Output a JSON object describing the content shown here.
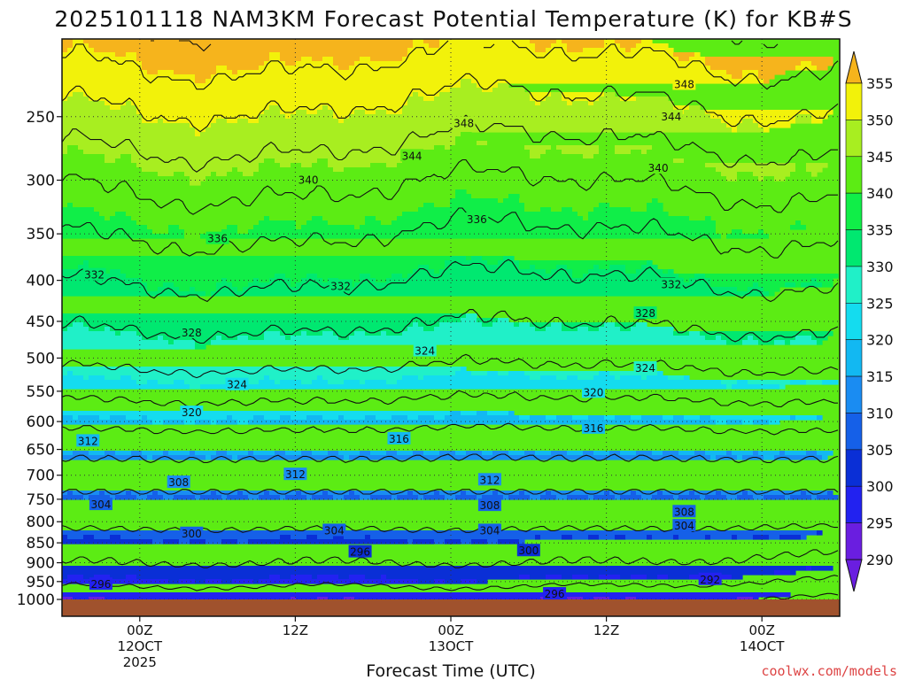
{
  "title": "2025101118 NAM3KM Forecast Potential Temperature (K) for KB#S",
  "credit": "coolwx.com/models",
  "colors": {
    "ground": "#a0522d",
    "bands": {
      "290": "#6a1ee0",
      "295": "#2222f0",
      "300": "#0a2fd6",
      "305": "#1560e8",
      "310": "#1a8cf2",
      "315": "#12b8f2",
      "320": "#14dcef",
      "325": "#20f0c8",
      "330": "#00e870",
      "335": "#10ee48",
      "340": "#5cec14",
      "345": "#a8ee20",
      "350": "#f2f20a",
      "355": "#f6b41c"
    }
  },
  "chart_data": {
    "type": "heatmap",
    "title": "2025101118 NAM3KM Forecast Potential Temperature (K) for KB#S",
    "xlabel": "Forecast Time (UTC)",
    "ylabel": "",
    "x_hours_range": [
      -6,
      54
    ],
    "y_pressure_range": [
      1000,
      200
    ],
    "y_ticks": [
      250,
      300,
      350,
      400,
      450,
      500,
      550,
      600,
      650,
      700,
      750,
      800,
      850,
      900,
      950,
      1000
    ],
    "x_ticks": [
      {
        "hour": 0,
        "lines": [
          "00Z",
          "12OCT",
          "2025"
        ]
      },
      {
        "hour": 12,
        "lines": [
          "12Z"
        ]
      },
      {
        "hour": 24,
        "lines": [
          "00Z",
          "13OCT"
        ]
      },
      {
        "hour": 36,
        "lines": [
          "12Z"
        ]
      },
      {
        "hour": 48,
        "lines": [
          "00Z",
          "14OCT"
        ]
      }
    ],
    "colorbar_levels": [
      290,
      295,
      300,
      305,
      310,
      315,
      320,
      325,
      330,
      335,
      340,
      345,
      350,
      355
    ],
    "contour_interval_K": 4,
    "contour_labels": [
      {
        "value": 348,
        "hour": 42,
        "p": 228
      },
      {
        "value": 348,
        "hour": 25,
        "p": 255
      },
      {
        "value": 344,
        "hour": 41,
        "p": 250
      },
      {
        "value": 344,
        "hour": 21,
        "p": 280
      },
      {
        "value": 340,
        "hour": 40,
        "p": 290
      },
      {
        "value": 340,
        "hour": 13,
        "p": 300
      },
      {
        "value": 336,
        "hour": 26,
        "p": 336
      },
      {
        "value": 336,
        "hour": 6,
        "p": 355
      },
      {
        "value": 332,
        "hour": -3.5,
        "p": 394
      },
      {
        "value": 332,
        "hour": 15.5,
        "p": 407
      },
      {
        "value": 332,
        "hour": 41,
        "p": 405
      },
      {
        "value": 328,
        "hour": 39,
        "p": 440
      },
      {
        "value": 328,
        "hour": 4,
        "p": 465
      },
      {
        "value": 324,
        "hour": 22,
        "p": 490
      },
      {
        "value": 324,
        "hour": 39,
        "p": 515
      },
      {
        "value": 324,
        "hour": 7.5,
        "p": 540
      },
      {
        "value": 320,
        "hour": 35,
        "p": 552
      },
      {
        "value": 320,
        "hour": 4,
        "p": 585
      },
      {
        "value": 316,
        "hour": 35,
        "p": 612
      },
      {
        "value": 316,
        "hour": 20,
        "p": 631
      },
      {
        "value": 312,
        "hour": -4,
        "p": 635
      },
      {
        "value": 312,
        "hour": 12,
        "p": 699
      },
      {
        "value": 312,
        "hour": 27,
        "p": 710
      },
      {
        "value": 308,
        "hour": 3,
        "p": 715
      },
      {
        "value": 308,
        "hour": 27,
        "p": 764
      },
      {
        "value": 308,
        "hour": 42,
        "p": 778
      },
      {
        "value": 304,
        "hour": -3,
        "p": 762
      },
      {
        "value": 304,
        "hour": 15,
        "p": 821
      },
      {
        "value": 304,
        "hour": 27,
        "p": 821
      },
      {
        "value": 304,
        "hour": 42,
        "p": 810
      },
      {
        "value": 300,
        "hour": 4,
        "p": 828
      },
      {
        "value": 300,
        "hour": 30,
        "p": 870
      },
      {
        "value": 296,
        "hour": 17,
        "p": 873
      },
      {
        "value": 296,
        "hour": -3,
        "p": 958
      },
      {
        "value": 296,
        "hour": 32,
        "p": 985
      },
      {
        "value": 292,
        "hour": 44,
        "p": 945
      }
    ],
    "theta_profile_base": [
      {
        "p": 1000,
        "theta": 293
      },
      {
        "p": 950,
        "theta": 297
      },
      {
        "p": 900,
        "theta": 300
      },
      {
        "p": 850,
        "theta": 302
      },
      {
        "p": 800,
        "theta": 305
      },
      {
        "p": 750,
        "theta": 307
      },
      {
        "p": 700,
        "theta": 310
      },
      {
        "p": 650,
        "theta": 313
      },
      {
        "p": 600,
        "theta": 317
      },
      {
        "p": 550,
        "theta": 321
      },
      {
        "p": 500,
        "theta": 325
      },
      {
        "p": 450,
        "theta": 328.5
      },
      {
        "p": 400,
        "theta": 332
      },
      {
        "p": 350,
        "theta": 336
      },
      {
        "p": 300,
        "theta": 340.5
      },
      {
        "p": 250,
        "theta": 346.5
      },
      {
        "p": 200,
        "theta": 354
      }
    ]
  }
}
